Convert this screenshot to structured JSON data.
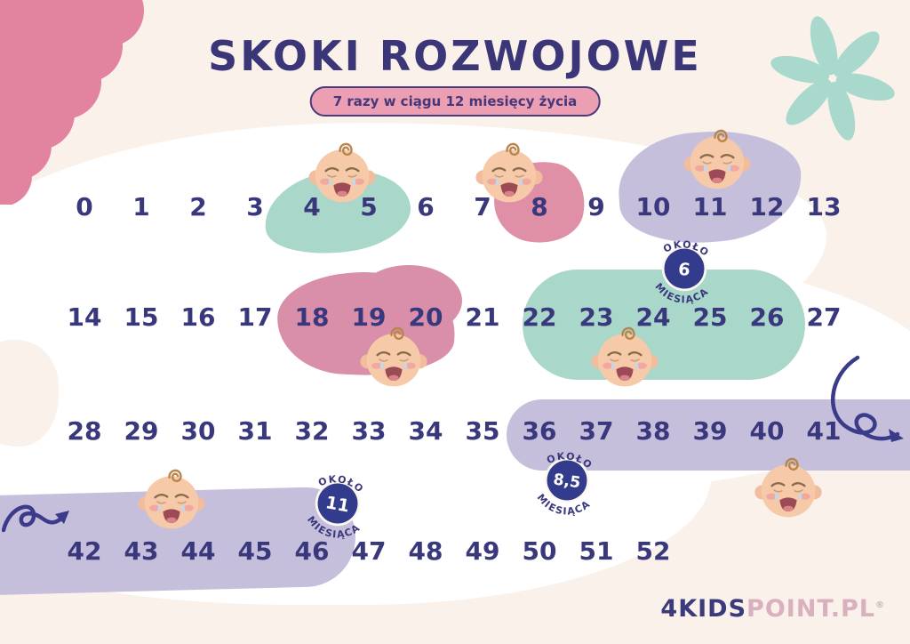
{
  "title": "SKOKI ROZWOJOWE",
  "subtitle": "7 razy w ciągu 12 miesięcy życia",
  "weeks": {
    "rows": [
      [
        "0",
        "1",
        "2",
        "3",
        "4",
        "5",
        "6",
        "7",
        "8",
        "9",
        "10",
        "11",
        "12",
        "13"
      ],
      [
        "14",
        "15",
        "16",
        "17",
        "18",
        "19",
        "20",
        "21",
        "22",
        "23",
        "24",
        "25",
        "26",
        "27"
      ],
      [
        "28",
        "29",
        "30",
        "31",
        "32",
        "33",
        "34",
        "35",
        "36",
        "37",
        "38",
        "39",
        "40",
        "41"
      ],
      [
        "42",
        "43",
        "44",
        "45",
        "46",
        "47",
        "48",
        "49",
        "50",
        "51",
        "52"
      ]
    ]
  },
  "badges": [
    {
      "top": "OKOŁO",
      "value": "6",
      "bottom": "MIESIĄCA"
    },
    {
      "top": "OKOŁO",
      "value": "8,5",
      "bottom": "MIESIĄCA"
    },
    {
      "top": "OKOŁO",
      "value": "11",
      "bottom": "MIESIĄCA"
    }
  ],
  "logo": {
    "part1": "4KIDS",
    "part2": "POINT.PL",
    "reg": "®"
  },
  "icons": {
    "baby": "crying-baby-icon",
    "flower": "teal-flower-icon",
    "arrows": "curly-arrow-icon",
    "corner": "pink-scallop-corner"
  },
  "colors": {
    "background": "#faf1ea",
    "navy_text": "#39387d",
    "teal_blob": "#a9d7c9",
    "pink_blob": "#d98ea9",
    "lavender_blob": "#c6bfdc",
    "corner_pink": "#e2849f",
    "badge_navy": "#333b8c",
    "pill_pink": "#ec9fb2",
    "logo_pink": "#d9b0be"
  }
}
